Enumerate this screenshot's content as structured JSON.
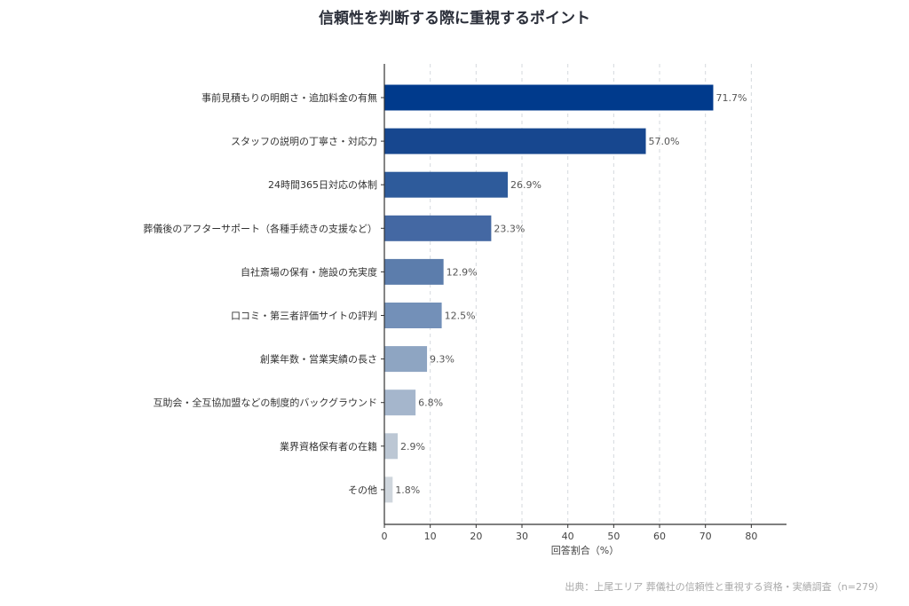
{
  "chart_data": {
    "type": "bar",
    "orientation": "horizontal",
    "title": "信頼性を判断する際に重視するポイント",
    "xlabel": "回答割合（%）",
    "ylabel": "",
    "xlim": [
      0,
      88
    ],
    "xticks": [
      0,
      10,
      20,
      30,
      40,
      50,
      60,
      70,
      80
    ],
    "grid": "x-dashed",
    "categories": [
      "事前見積もりの明朗さ・追加料金の有無",
      "スタッフの説明の丁寧さ・対応力",
      "24時間365日対応の体制",
      "葬儀後のアフターサポート（各種手続きの支援など）",
      "自社斎場の保有・施設の充実度",
      "口コミ・第三者評価サイトの評判",
      "創業年数・営業実績の長さ",
      "互助会・全互協加盟などの制度的バックグラウンド",
      "業界資格保有者の在籍",
      "その他"
    ],
    "values": [
      71.7,
      57.0,
      26.9,
      23.3,
      12.9,
      12.5,
      9.3,
      6.8,
      2.9,
      1.8
    ],
    "value_labels": [
      "71.7%",
      "57.0%",
      "26.9%",
      "23.3%",
      "12.9%",
      "12.5%",
      "9.3%",
      "6.8%",
      "2.9%",
      "1.8%"
    ],
    "colors": [
      "#003a8c",
      "#17478f",
      "#2e5b9b",
      "#4468a3",
      "#5c7dac",
      "#7390b8",
      "#8ea5c2",
      "#a5b6cc",
      "#bcc7d4",
      "#cfd6dd"
    ],
    "source": "出典：上尾エリア 葬儀社の信頼性と重視する資格・実績調査（n=279）"
  }
}
